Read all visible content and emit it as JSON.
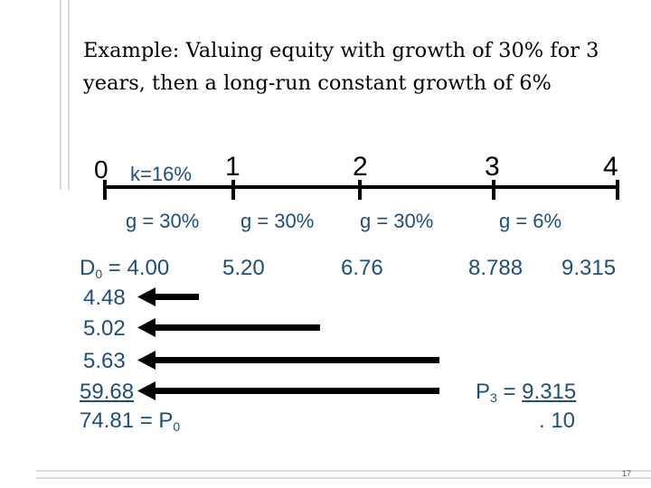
{
  "title": "Example:  Valuing equity with growth of 30% for 3 years, then a long-run constant growth of 6%",
  "timeline": {
    "periods": [
      "0",
      "1",
      "2",
      "3",
      "4"
    ],
    "discount_rate": "k=16%",
    "growth_rates": [
      "g = 30%",
      "g = 30%",
      "g = 30%",
      "g = 6%"
    ]
  },
  "dividends": {
    "d0_label": "D",
    "d0_sub": "0",
    "d0_value": " = 4.00",
    "d1": "5.20",
    "d2": "6.76",
    "d3": "8.788",
    "d4": "9.315"
  },
  "present_values": {
    "pv1": "4.48",
    "pv2": "5.02",
    "pv3": "5.63",
    "pv_terminal": "59.68",
    "total": "74.81 = P",
    "total_sub": "0"
  },
  "terminal": {
    "label": "P",
    "sub": "3",
    "equals": " = ",
    "numerator": "9.315",
    "denominator": ". 10"
  },
  "page_number": "17",
  "colors": {
    "text_blue": "#1f4e79",
    "arrow": "#000000",
    "frame": "#d9d9d9"
  }
}
